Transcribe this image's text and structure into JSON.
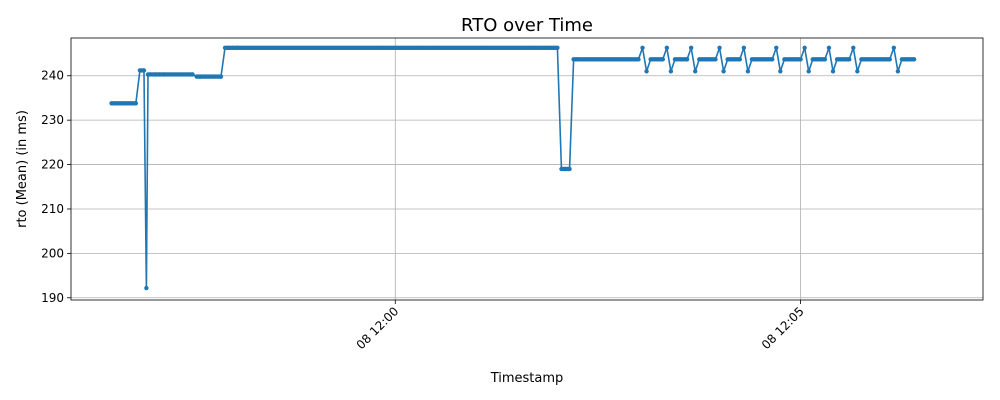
{
  "chart_data": {
    "type": "line",
    "title": "RTO over Time",
    "xlabel": "Timestamp",
    "ylabel": "rto (Mean) (in ms)",
    "x_unit": "minutes after 11:56",
    "xlim": [
      0.0,
      11.25
    ],
    "ylim": [
      189.5,
      248.5
    ],
    "x_ticks": [
      {
        "value": 4.0,
        "label": "08 12:00"
      },
      {
        "value": 9.0,
        "label": "08 12:05"
      }
    ],
    "y_ticks": [
      190,
      200,
      210,
      220,
      230,
      240
    ],
    "grid": true,
    "legend": "none",
    "color": "#1f77b4",
    "series": [
      {
        "x": [
          0.5,
          0.8,
          0.85,
          0.9,
          0.93,
          0.95,
          0.98,
          1.05,
          1.1,
          1.15,
          1.5,
          1.55,
          1.6,
          1.85,
          1.9,
          1.95,
          2.0,
          2.05,
          6.0,
          6.05,
          6.1,
          6.15,
          6.2,
          6.25,
          7.0,
          7.05,
          7.1,
          7.15,
          7.3,
          7.35,
          7.4,
          7.45,
          7.6,
          7.65,
          7.7,
          7.75,
          7.95,
          8.0,
          8.05,
          8.1,
          8.25,
          8.3,
          8.35,
          8.4,
          8.65,
          8.7,
          8.75,
          8.8,
          9.0,
          9.05,
          9.1,
          9.15,
          9.3,
          9.35,
          9.4,
          9.45,
          9.6,
          9.65,
          9.7,
          9.75,
          10.1,
          10.15,
          10.2,
          10.25,
          10.4
        ],
        "y": [
          233.8,
          233.8,
          241.2,
          241.2,
          192.2,
          240.3,
          240.3,
          240.3,
          240.3,
          240.3,
          240.3,
          239.8,
          239.8,
          239.8,
          246.3,
          246.3,
          246.3,
          246.3,
          246.3,
          219.0,
          219.0,
          219.0,
          243.7,
          243.7,
          243.7,
          246.3,
          241.0,
          243.7,
          243.7,
          246.3,
          241.0,
          243.7,
          243.7,
          246.3,
          241.0,
          243.7,
          243.7,
          246.3,
          241.0,
          243.7,
          243.7,
          246.3,
          241.0,
          243.7,
          243.7,
          246.3,
          241.0,
          243.7,
          243.7,
          246.3,
          241.0,
          243.7,
          243.7,
          246.3,
          241.0,
          243.7,
          243.7,
          246.3,
          241.0,
          243.7,
          243.7,
          246.3,
          241.0,
          243.7,
          243.7
        ]
      }
    ]
  }
}
